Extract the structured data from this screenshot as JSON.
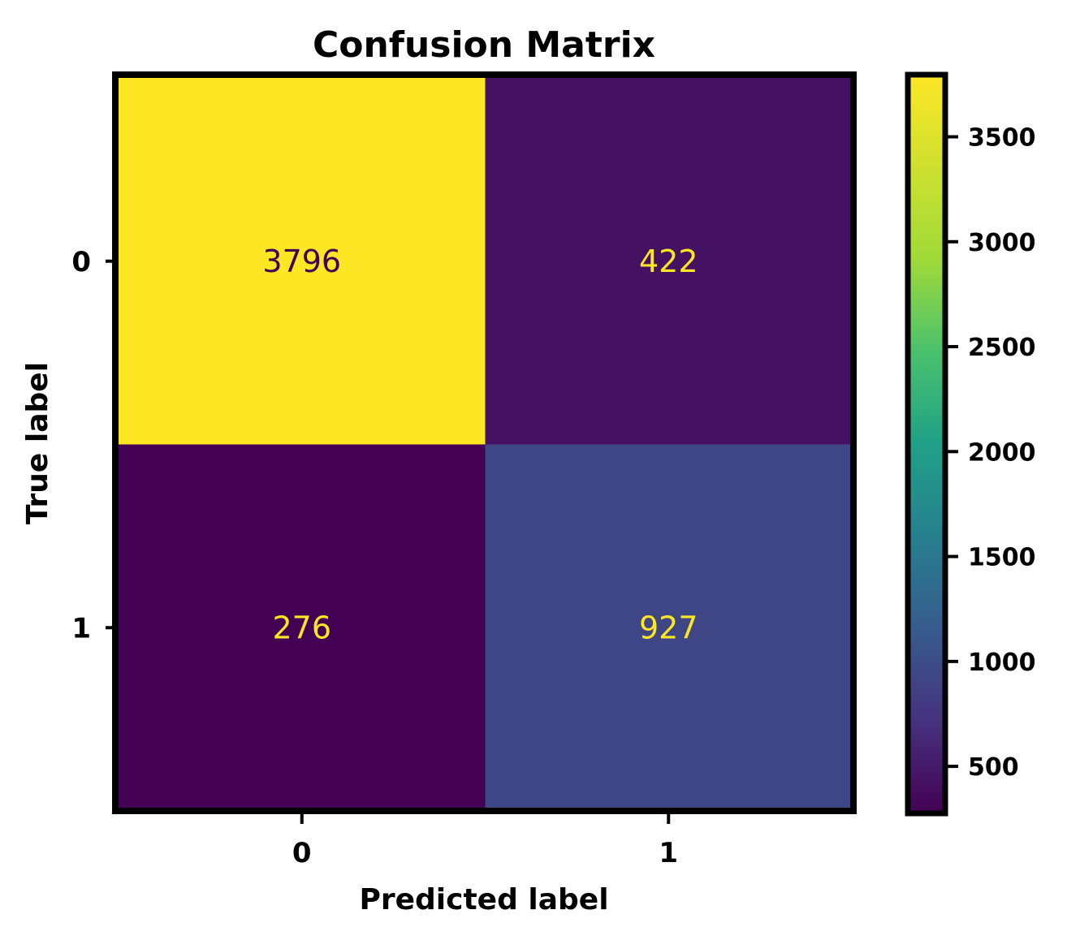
{
  "chart_data": {
    "type": "heatmap",
    "title": "Confusion Matrix",
    "xlabel": "Predicted label",
    "ylabel": "True label",
    "x_categories": [
      "0",
      "1"
    ],
    "y_categories": [
      "0",
      "1"
    ],
    "values": [
      [
        3796,
        422
      ],
      [
        276,
        927
      ]
    ],
    "colormap": "viridis",
    "colorbar": {
      "range": [
        276,
        3796
      ],
      "ticks": [
        500,
        1000,
        1500,
        2000,
        2500,
        3000,
        3500
      ],
      "tick_labels": [
        "500",
        "1000",
        "1500",
        "2000",
        "2500",
        "3000",
        "3500"
      ]
    },
    "colors": {
      "viridis_low": "#440154",
      "viridis_high": "#fde725"
    }
  }
}
